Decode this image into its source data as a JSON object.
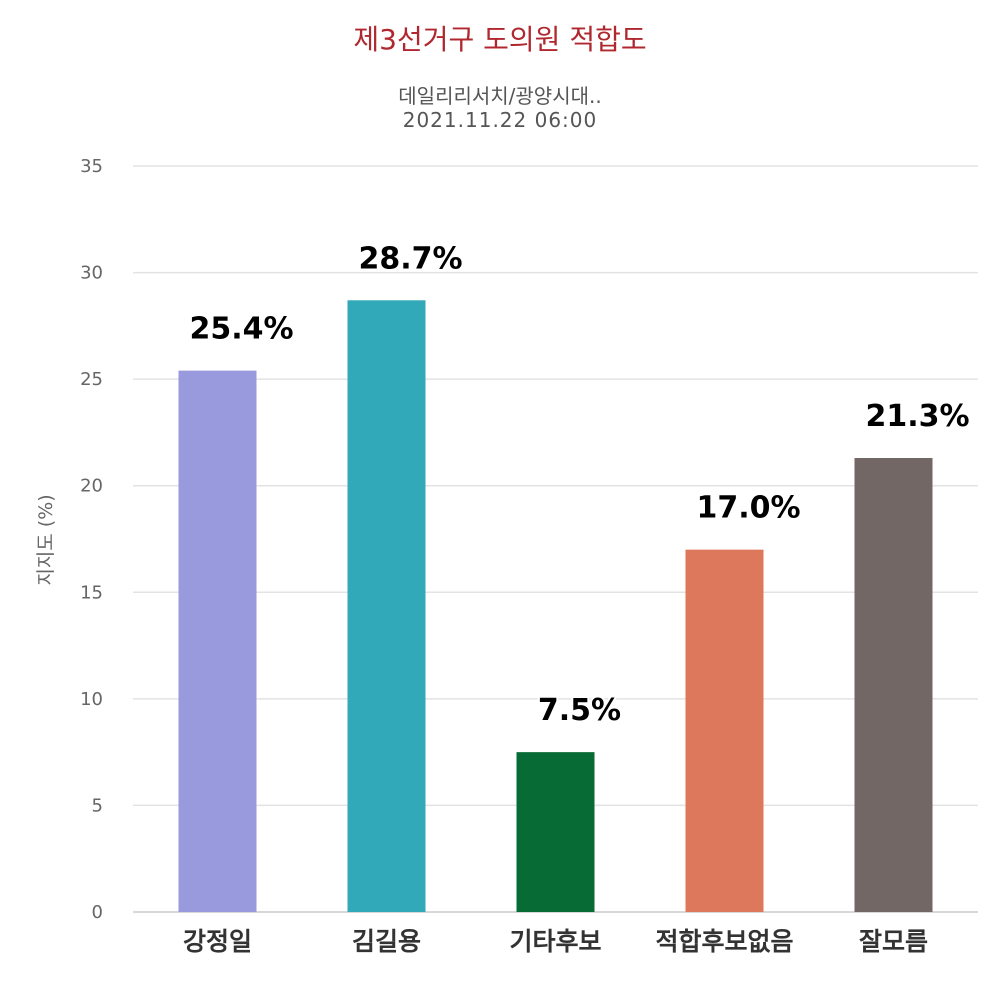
{
  "chart_data": {
    "type": "bar",
    "title": "제3선거구 도의원 적합도",
    "subtitle_line1": "데일리리서치/광양시대..",
    "subtitle_line2": "2021.11.22 06:00",
    "xlabel": "",
    "ylabel": "지지도 (%)",
    "ylim": [
      0,
      35
    ],
    "yticks": [
      0,
      5,
      10,
      15,
      20,
      25,
      30,
      35
    ],
    "grid": true,
    "legend": "none",
    "categories": [
      "강정일",
      "김길용",
      "기타후보",
      "적합후보없음",
      "잘모름"
    ],
    "values": [
      25.4,
      28.7,
      7.5,
      17.0,
      21.3
    ],
    "data_labels": [
      "25.4%",
      "28.7%",
      "7.5%",
      "17.0%",
      "21.3%"
    ],
    "colors": [
      "#9999dd",
      "#31a9b8",
      "#076b35",
      "#dd785c",
      "#726764"
    ]
  }
}
